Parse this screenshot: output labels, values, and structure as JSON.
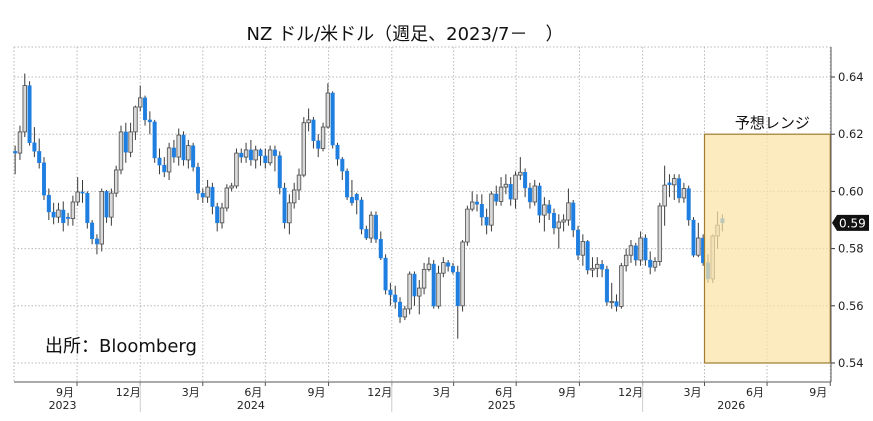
{
  "chart_data": {
    "type": "candlestick",
    "title": "NZ ドル/米ドル（週足、2023/7－　）",
    "source_note": "出所：Bloomberg",
    "ylim": [
      0.54,
      0.65
    ],
    "y_ticks": [
      "0.54",
      "0.56",
      "0.58",
      "0.60",
      "0.62",
      "0.64"
    ],
    "x_range": [
      "2023-07-01",
      "2026-10-01"
    ],
    "x_ticks": [
      {
        "month": "2023-09",
        "label": "9月"
      },
      {
        "month": "2023-12",
        "label": "12月"
      },
      {
        "month": "2024-03",
        "label": "3月"
      },
      {
        "month": "2024-06",
        "label": "6月"
      },
      {
        "month": "2024-09",
        "label": "9月"
      },
      {
        "month": "2024-12",
        "label": "12月"
      },
      {
        "month": "2025-03",
        "label": "3月"
      },
      {
        "month": "2025-06",
        "label": "6月"
      },
      {
        "month": "2025-09",
        "label": "9月"
      },
      {
        "month": "2025-12",
        "label": "12月"
      },
      {
        "month": "2026-03",
        "label": "3月"
      },
      {
        "month": "2026-06",
        "label": "6月"
      },
      {
        "month": "2026-09",
        "label": "9月"
      }
    ],
    "year_labels": [
      {
        "year": "2023",
        "month": "2023-09"
      },
      {
        "year": "2024",
        "month": "2024-06"
      },
      {
        "year": "2025",
        "month": "2025-06"
      },
      {
        "year": "2026",
        "month": "2026-05"
      }
    ],
    "grid": true,
    "colors": {
      "down": "#1f7fe0",
      "up_fill": "#d9d9d9",
      "up_stroke": "#4a4a4a",
      "wick": "#333333",
      "range_fill": "#fbe3a6",
      "range_stroke": "#a07c30",
      "last_bg": "#111111"
    },
    "last_price_label": "0.59",
    "forecast_range": {
      "label": "予想レンジ",
      "from": "2026-04-01",
      "to": "2026-10-01",
      "low": 0.54,
      "high": 0.62
    },
    "columns": [
      "week",
      "open",
      "high",
      "low",
      "close"
    ],
    "candles": [
      [
        "2023-07-03",
        0.614,
        0.616,
        0.606,
        0.6134
      ],
      [
        "2023-07-10",
        0.6134,
        0.623,
        0.611,
        0.6208
      ],
      [
        "2023-07-17",
        0.6208,
        0.6412,
        0.619,
        0.637
      ],
      [
        "2023-07-24",
        0.637,
        0.6385,
        0.616,
        0.617
      ],
      [
        "2023-07-31",
        0.617,
        0.6225,
        0.612,
        0.614
      ],
      [
        "2023-08-07",
        0.614,
        0.6185,
        0.608,
        0.61
      ],
      [
        "2023-08-14",
        0.61,
        0.612,
        0.597,
        0.5987
      ],
      [
        "2023-08-21",
        0.5987,
        0.601,
        0.59,
        0.5928
      ],
      [
        "2023-08-28",
        0.5928,
        0.596,
        0.5885,
        0.591
      ],
      [
        "2023-09-04",
        0.591,
        0.596,
        0.589,
        0.5935
      ],
      [
        "2023-09-11",
        0.5935,
        0.5965,
        0.586,
        0.589
      ],
      [
        "2023-09-18",
        0.591,
        0.5925,
        0.588,
        0.5905
      ],
      [
        "2023-09-25",
        0.5905,
        0.5985,
        0.588,
        0.5963
      ],
      [
        "2023-10-02",
        0.5963,
        0.605,
        0.595,
        0.5998
      ],
      [
        "2023-10-09",
        0.5998,
        0.604,
        0.596,
        0.5994
      ],
      [
        "2023-10-16",
        0.5994,
        0.6,
        0.587,
        0.589
      ],
      [
        "2023-10-23",
        0.589,
        0.59,
        0.5815,
        0.5834
      ],
      [
        "2023-10-30",
        0.5834,
        0.585,
        0.578,
        0.5816
      ],
      [
        "2023-11-06",
        0.5816,
        0.601,
        0.579,
        0.6
      ],
      [
        "2023-11-13",
        0.6,
        0.6005,
        0.589,
        0.591
      ],
      [
        "2023-11-20",
        0.591,
        0.601,
        0.588,
        0.5994
      ],
      [
        "2023-11-27",
        0.5994,
        0.609,
        0.598,
        0.6075
      ],
      [
        "2023-12-04",
        0.6075,
        0.623,
        0.606,
        0.6208
      ],
      [
        "2023-12-11",
        0.6208,
        0.624,
        0.61,
        0.6137
      ],
      [
        "2023-12-18",
        0.6137,
        0.624,
        0.612,
        0.6208
      ],
      [
        "2023-12-25",
        0.6208,
        0.63,
        0.618,
        0.6295
      ],
      [
        "2024-01-01",
        0.6295,
        0.637,
        0.628,
        0.6327
      ],
      [
        "2024-01-08",
        0.6327,
        0.6335,
        0.623,
        0.625
      ],
      [
        "2024-01-15",
        0.625,
        0.628,
        0.62,
        0.6243
      ],
      [
        "2024-01-22",
        0.6243,
        0.625,
        0.61,
        0.6117
      ],
      [
        "2024-01-29",
        0.6117,
        0.615,
        0.606,
        0.6092
      ],
      [
        "2024-02-05",
        0.6092,
        0.612,
        0.605,
        0.6068
      ],
      [
        "2024-02-12",
        0.6068,
        0.617,
        0.604,
        0.6152
      ],
      [
        "2024-02-19",
        0.6152,
        0.618,
        0.61,
        0.612
      ],
      [
        "2024-02-26",
        0.612,
        0.622,
        0.609,
        0.6197
      ],
      [
        "2024-03-04",
        0.6197,
        0.621,
        0.609,
        0.611
      ],
      [
        "2024-03-11",
        0.611,
        0.618,
        0.608,
        0.616
      ],
      [
        "2024-03-18",
        0.616,
        0.617,
        0.607,
        0.6085
      ],
      [
        "2024-03-25",
        0.6085,
        0.61,
        0.597,
        0.5994
      ],
      [
        "2024-04-01",
        0.5994,
        0.601,
        0.596,
        0.598
      ],
      [
        "2024-04-08",
        0.598,
        0.604,
        0.596,
        0.6015
      ],
      [
        "2024-04-15",
        0.6015,
        0.603,
        0.592,
        0.5947
      ],
      [
        "2024-04-22",
        0.5947,
        0.596,
        0.586,
        0.589
      ],
      [
        "2024-04-29",
        0.589,
        0.596,
        0.587,
        0.5942
      ],
      [
        "2024-05-06",
        0.5942,
        0.6025,
        0.593,
        0.6012
      ],
      [
        "2024-05-13",
        0.6012,
        0.603,
        0.6,
        0.6019
      ],
      [
        "2024-05-20",
        0.6019,
        0.615,
        0.601,
        0.6134
      ],
      [
        "2024-05-27",
        0.6134,
        0.615,
        0.61,
        0.612
      ],
      [
        "2024-06-03",
        0.612,
        0.617,
        0.61,
        0.6145
      ],
      [
        "2024-06-10",
        0.6145,
        0.618,
        0.609,
        0.611
      ],
      [
        "2024-06-17",
        0.611,
        0.616,
        0.608,
        0.6145
      ],
      [
        "2024-06-24",
        0.6145,
        0.615,
        0.609,
        0.6124
      ],
      [
        "2024-07-01",
        0.6124,
        0.615,
        0.608,
        0.61
      ],
      [
        "2024-07-08",
        0.61,
        0.616,
        0.609,
        0.6145
      ],
      [
        "2024-07-15",
        0.6145,
        0.616,
        0.607,
        0.6125
      ],
      [
        "2024-07-22",
        0.6125,
        0.614,
        0.599,
        0.6012
      ],
      [
        "2024-07-29",
        0.6012,
        0.603,
        0.587,
        0.589
      ],
      [
        "2024-08-05",
        0.589,
        0.599,
        0.585,
        0.596
      ],
      [
        "2024-08-12",
        0.596,
        0.603,
        0.594,
        0.6005
      ],
      [
        "2024-08-19",
        0.6005,
        0.608,
        0.597,
        0.6057
      ],
      [
        "2024-08-26",
        0.6057,
        0.626,
        0.605,
        0.624
      ],
      [
        "2024-09-02",
        0.624,
        0.629,
        0.621,
        0.625
      ],
      [
        "2024-09-09",
        0.625,
        0.626,
        0.615,
        0.6177
      ],
      [
        "2024-09-16",
        0.6177,
        0.62,
        0.612,
        0.615
      ],
      [
        "2024-09-23",
        0.615,
        0.624,
        0.614,
        0.6225
      ],
      [
        "2024-09-30",
        0.6225,
        0.6378,
        0.622,
        0.6344
      ],
      [
        "2024-10-07",
        0.6344,
        0.635,
        0.615,
        0.6162
      ],
      [
        "2024-10-14",
        0.6162,
        0.617,
        0.609,
        0.6113
      ],
      [
        "2024-10-21",
        0.6113,
        0.612,
        0.604,
        0.6071
      ],
      [
        "2024-10-28",
        0.6071,
        0.608,
        0.597,
        0.598
      ],
      [
        "2024-11-04",
        0.598,
        0.604,
        0.595,
        0.596
      ],
      [
        "2024-11-11",
        0.599,
        0.5995,
        0.592,
        0.597
      ],
      [
        "2024-11-18",
        0.597,
        0.598,
        0.585,
        0.5868
      ],
      [
        "2024-11-25",
        0.5868,
        0.588,
        0.583,
        0.5837
      ],
      [
        "2024-12-02",
        0.5837,
        0.593,
        0.582,
        0.5917
      ],
      [
        "2024-12-09",
        0.5917,
        0.593,
        0.582,
        0.5833
      ],
      [
        "2024-12-16",
        0.5833,
        0.586,
        0.576,
        0.5767
      ],
      [
        "2024-12-23",
        0.5767,
        0.578,
        0.564,
        0.5655
      ],
      [
        "2024-12-30",
        0.5655,
        0.568,
        0.56,
        0.5638
      ],
      [
        "2025-01-06",
        0.5638,
        0.567,
        0.559,
        0.5613
      ],
      [
        "2025-01-13",
        0.5613,
        0.563,
        0.554,
        0.5561
      ],
      [
        "2025-01-20",
        0.5561,
        0.56,
        0.555,
        0.5589
      ],
      [
        "2025-01-27",
        0.5589,
        0.572,
        0.557,
        0.5711
      ],
      [
        "2025-02-03",
        0.5711,
        0.572,
        0.56,
        0.5634
      ],
      [
        "2025-02-10",
        0.5634,
        0.569,
        0.557,
        0.5662
      ],
      [
        "2025-02-17",
        0.5662,
        0.575,
        0.564,
        0.5727
      ],
      [
        "2025-02-24",
        0.5727,
        0.577,
        0.572,
        0.5746
      ],
      [
        "2025-03-03",
        0.5746,
        0.576,
        0.559,
        0.5599
      ],
      [
        "2025-03-10",
        0.5599,
        0.574,
        0.559,
        0.5714
      ],
      [
        "2025-03-17",
        0.5714,
        0.577,
        0.57,
        0.5751
      ],
      [
        "2025-03-24",
        0.5751,
        0.576,
        0.572,
        0.5738
      ],
      [
        "2025-03-31",
        0.5738,
        0.575,
        0.571,
        0.5718
      ],
      [
        "2025-04-07",
        0.5718,
        0.574,
        0.5485,
        0.56
      ],
      [
        "2025-04-14",
        0.56,
        0.583,
        0.558,
        0.5823
      ],
      [
        "2025-04-21",
        0.5823,
        0.595,
        0.581,
        0.5938
      ],
      [
        "2025-04-28",
        0.5938,
        0.6,
        0.593,
        0.5963
      ],
      [
        "2025-05-05",
        0.5963,
        0.599,
        0.593,
        0.5955
      ],
      [
        "2025-05-12",
        0.5955,
        0.599,
        0.588,
        0.591
      ],
      [
        "2025-05-19",
        0.591,
        0.594,
        0.585,
        0.5882
      ],
      [
        "2025-05-26",
        0.5882,
        0.6,
        0.586,
        0.5991
      ],
      [
        "2025-06-02",
        0.5991,
        0.602,
        0.595,
        0.5965
      ],
      [
        "2025-06-09",
        0.5965,
        0.605,
        0.595,
        0.6015
      ],
      [
        "2025-06-16",
        0.6015,
        0.606,
        0.599,
        0.6025
      ],
      [
        "2025-06-23",
        0.6025,
        0.605,
        0.595,
        0.5973
      ],
      [
        "2025-06-30",
        0.5973,
        0.607,
        0.594,
        0.6057
      ],
      [
        "2025-07-07",
        0.6057,
        0.612,
        0.604,
        0.6067
      ],
      [
        "2025-07-14",
        0.6067,
        0.608,
        0.598,
        0.6012
      ],
      [
        "2025-07-21",
        0.6012,
        0.603,
        0.594,
        0.5963
      ],
      [
        "2025-07-28",
        0.5963,
        0.604,
        0.595,
        0.6019
      ],
      [
        "2025-08-04",
        0.6019,
        0.603,
        0.589,
        0.5917
      ],
      [
        "2025-08-11",
        0.5917,
        0.598,
        0.586,
        0.5953
      ],
      [
        "2025-08-18",
        0.5953,
        0.597,
        0.59,
        0.5924
      ],
      [
        "2025-08-25",
        0.5924,
        0.594,
        0.585,
        0.5872
      ],
      [
        "2025-09-01",
        0.5872,
        0.592,
        0.58,
        0.5893
      ],
      [
        "2025-09-08",
        0.5893,
        0.592,
        0.586,
        0.59
      ],
      [
        "2025-09-15",
        0.59,
        0.601,
        0.588,
        0.596
      ],
      [
        "2025-09-22",
        0.596,
        0.597,
        0.584,
        0.5865
      ],
      [
        "2025-09-29",
        0.5865,
        0.588,
        0.576,
        0.5777
      ],
      [
        "2025-10-06",
        0.5777,
        0.585,
        0.574,
        0.5825
      ],
      [
        "2025-10-13",
        0.5825,
        0.583,
        0.571,
        0.5725
      ],
      [
        "2025-10-20",
        0.5725,
        0.577,
        0.57,
        0.5731
      ],
      [
        "2025-10-27",
        0.5731,
        0.577,
        0.57,
        0.5745
      ],
      [
        "2025-11-03",
        0.5745,
        0.576,
        0.57,
        0.5728
      ],
      [
        "2025-11-10",
        0.5728,
        0.574,
        0.56,
        0.5613
      ],
      [
        "2025-11-17",
        0.5613,
        0.568,
        0.559,
        0.5615
      ],
      [
        "2025-11-24",
        0.5615,
        0.564,
        0.558,
        0.5598
      ],
      [
        "2025-12-01",
        0.5598,
        0.575,
        0.559,
        0.574
      ],
      [
        "2025-12-08",
        0.574,
        0.58,
        0.572,
        0.5777
      ],
      [
        "2025-12-15",
        0.5777,
        0.583,
        0.575,
        0.581
      ],
      [
        "2025-12-22",
        0.581,
        0.582,
        0.574,
        0.576
      ],
      [
        "2025-12-29",
        0.576,
        0.586,
        0.574,
        0.5837
      ],
      [
        "2026-01-05",
        0.5837,
        0.585,
        0.574,
        0.576
      ],
      [
        "2026-01-12",
        0.576,
        0.579,
        0.571,
        0.5735
      ],
      [
        "2026-01-19",
        0.5735,
        0.577,
        0.572,
        0.5755
      ],
      [
        "2026-01-26",
        0.5755,
        0.596,
        0.574,
        0.5949
      ],
      [
        "2026-02-02",
        0.5949,
        0.609,
        0.588,
        0.6022
      ],
      [
        "2026-02-09",
        0.603,
        0.606,
        0.598,
        0.6023
      ],
      [
        "2026-02-16",
        0.6023,
        0.606,
        0.597,
        0.6045
      ],
      [
        "2026-02-23",
        0.6045,
        0.606,
        0.596,
        0.5977
      ],
      [
        "2026-03-02",
        0.5977,
        0.603,
        0.596,
        0.601
      ],
      [
        "2026-03-09",
        0.601,
        0.602,
        0.588,
        0.59
      ],
      [
        "2026-03-16",
        0.59,
        0.591,
        0.577,
        0.5777
      ],
      [
        "2026-03-23",
        0.5777,
        0.589,
        0.577,
        0.5837
      ],
      [
        "2026-03-30",
        0.5837,
        0.585,
        0.574,
        0.575
      ],
      [
        "2026-04-06",
        0.575,
        0.578,
        0.568,
        0.5694
      ],
      [
        "2026-04-13",
        0.5694,
        0.585,
        0.568,
        0.5844
      ],
      [
        "2026-04-20",
        0.5844,
        0.593,
        0.58,
        0.5882
      ],
      [
        "2026-04-27",
        0.5905,
        0.592,
        0.586,
        0.589
      ]
    ]
  }
}
